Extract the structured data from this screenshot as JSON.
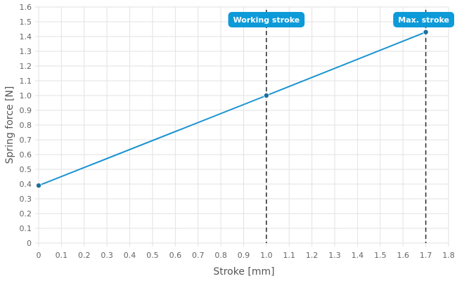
{
  "chart_data": {
    "type": "line",
    "title": "",
    "xlabel": "Stroke [mm]",
    "ylabel": "Spring force [N]",
    "xlim": [
      0,
      1.8
    ],
    "ylim": [
      0,
      1.6
    ],
    "x_ticks": [
      "0",
      "0.1",
      "0.2",
      "0.3",
      "0.4",
      "0.5",
      "0.6",
      "0.7",
      "0.8",
      "0.9",
      "1.0",
      "1.1",
      "1.2",
      "1.3",
      "1.4",
      "1.5",
      "1.6",
      "1.7",
      "1.8"
    ],
    "y_ticks": [
      "0",
      "0.1",
      "0.2",
      "0.3",
      "0.4",
      "0.5",
      "0.6",
      "0.7",
      "0.8",
      "0.9",
      "1.0",
      "1.1",
      "1.2",
      "1.3",
      "1.4",
      "1.5",
      "1.6"
    ],
    "grid": true,
    "series": [
      {
        "x": [
          0,
          1.0,
          1.7
        ],
        "y": [
          0.39,
          1.0,
          1.43
        ],
        "color": "#1a93d1"
      }
    ],
    "annotations": [
      {
        "label": "Working stroke",
        "x": 1.0,
        "y": 1.0
      },
      {
        "label": "Max. stroke",
        "x": 1.7,
        "y": 1.43
      }
    ],
    "colors": {
      "line": "#1a93d1",
      "marker": "#1b6f9f",
      "callout": "#0d9ad9",
      "grid": "#e2e2e2",
      "guide": "#333333"
    }
  }
}
